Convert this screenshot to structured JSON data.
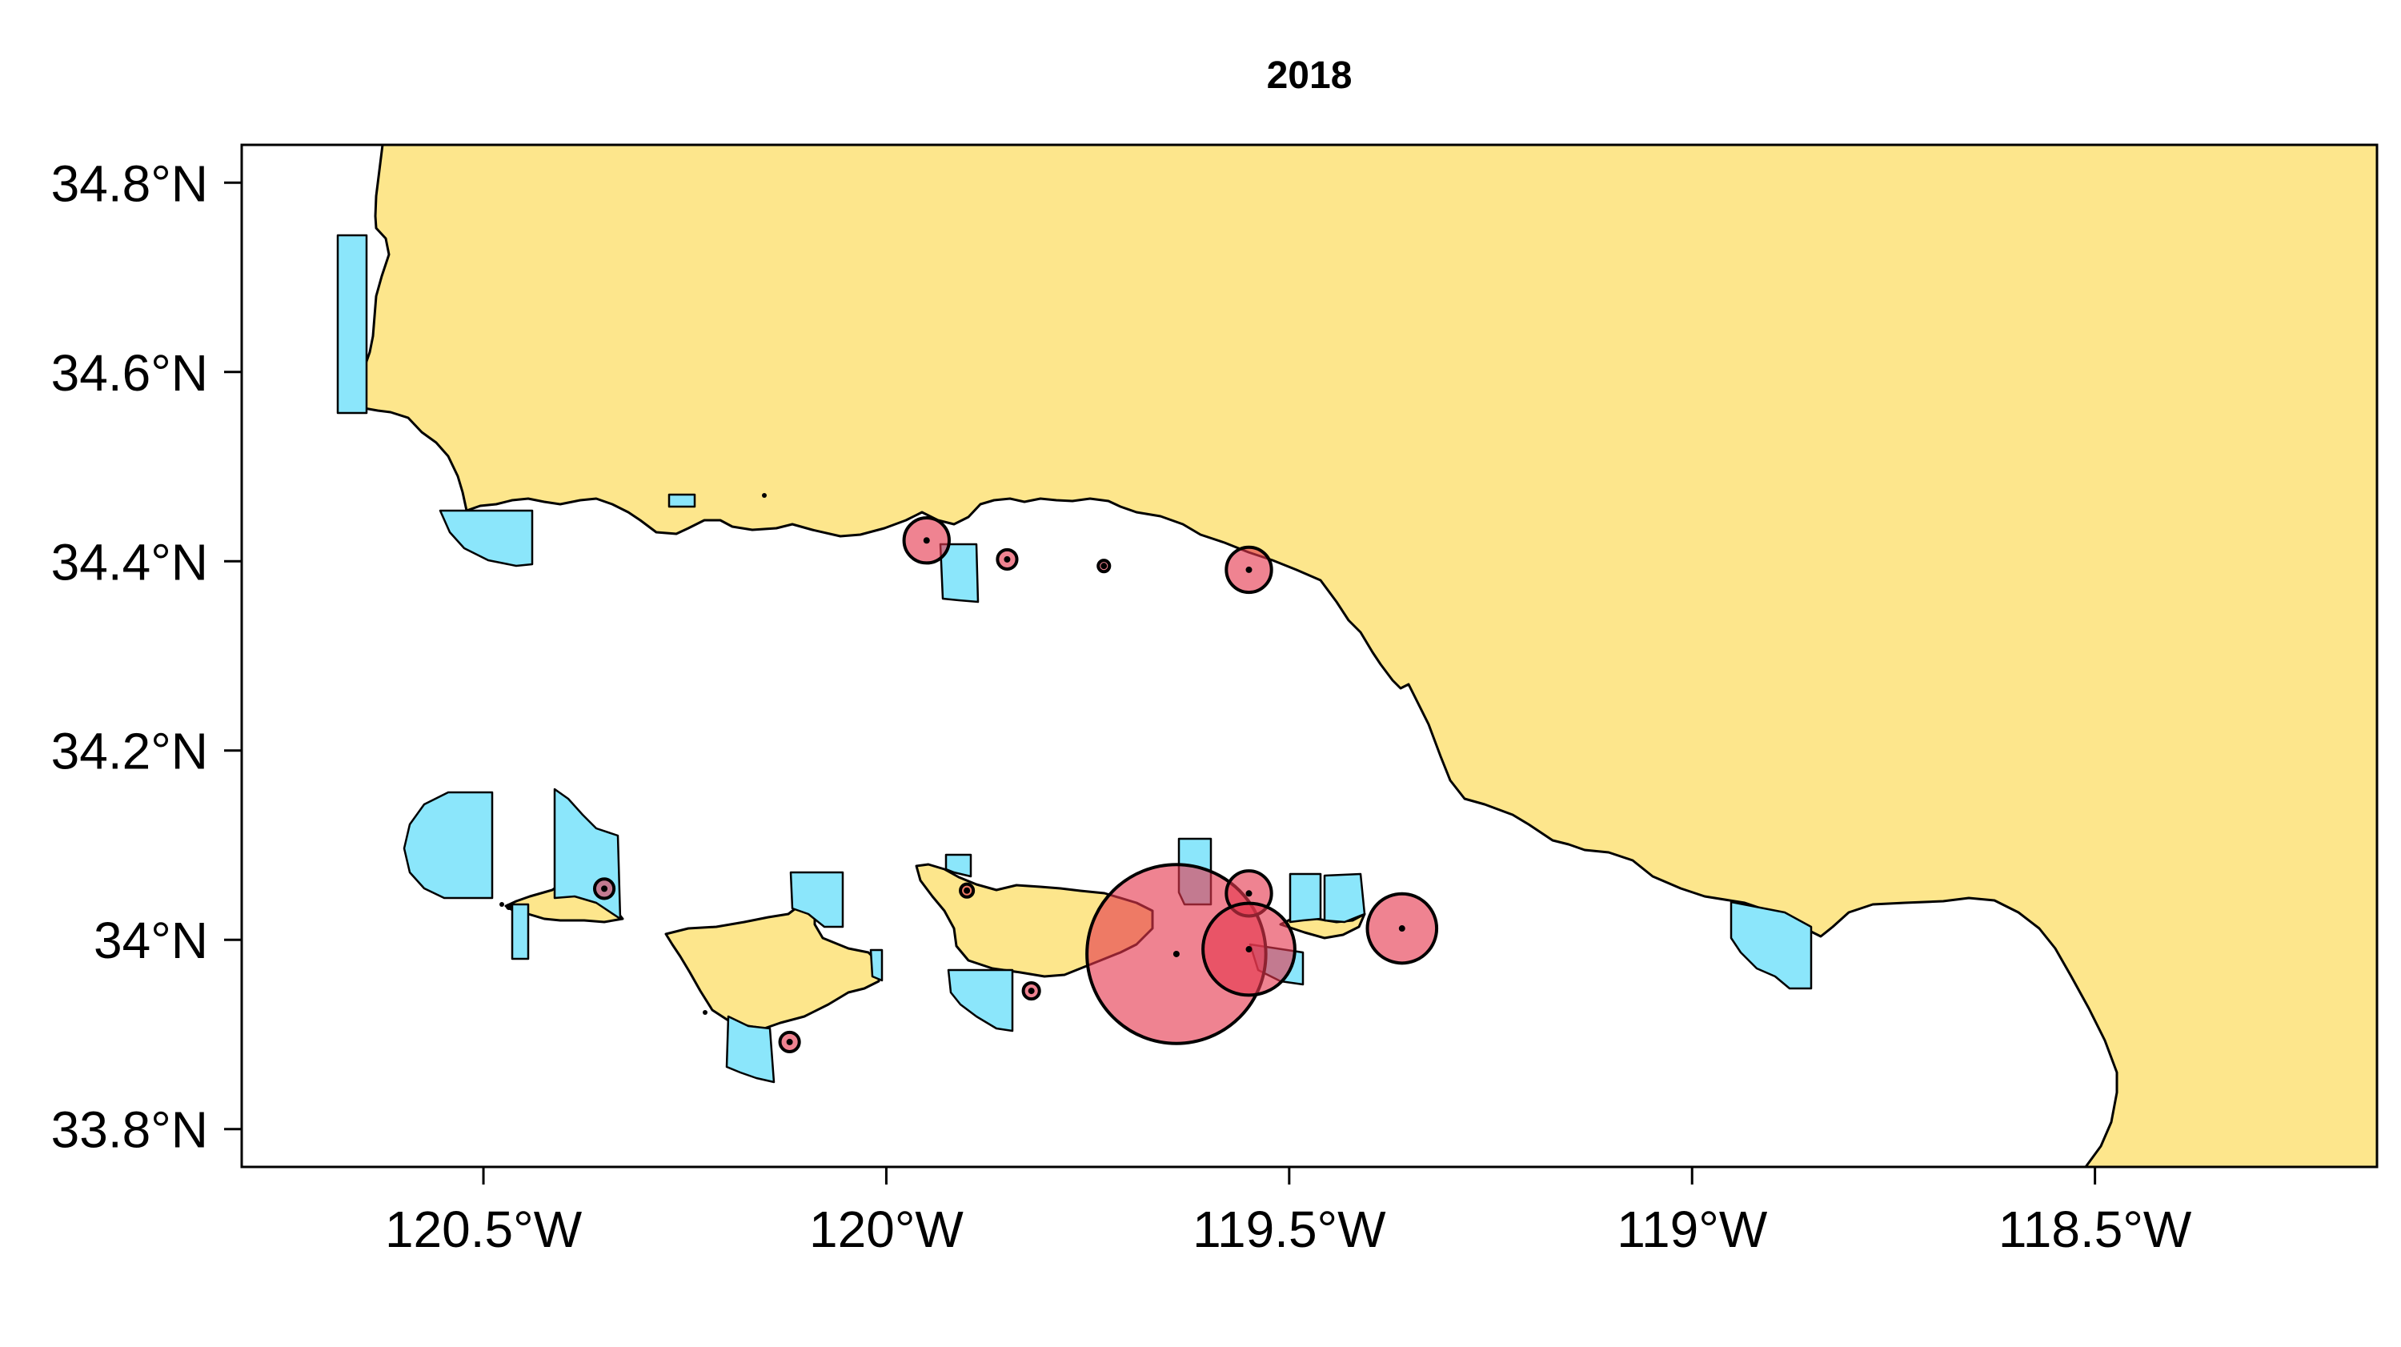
{
  "title": "2018",
  "map": {
    "x_range": [
      -120.8,
      -118.15
    ],
    "y_range": [
      33.76,
      34.84
    ],
    "x_ticks": [
      {
        "value": -120.5,
        "label": "120.5°W"
      },
      {
        "value": -120.0,
        "label": "120°W"
      },
      {
        "value": -119.5,
        "label": "119.5°W"
      },
      {
        "value": -119.0,
        "label": "119°W"
      },
      {
        "value": -118.5,
        "label": "118.5°W"
      }
    ],
    "y_ticks": [
      {
        "value": 34.8,
        "label": "34.8°N"
      },
      {
        "value": 34.6,
        "label": "34.6°N"
      },
      {
        "value": 34.4,
        "label": "34.4°N"
      },
      {
        "value": 34.2,
        "label": "34.2°N"
      },
      {
        "value": 34.0,
        "label": "34°N"
      },
      {
        "value": 33.8,
        "label": "33.8°N"
      }
    ],
    "colors": {
      "land": "#FDE68C",
      "protected_area": "#8BE6FB",
      "bubble": "#E5374E",
      "outline": "#000000"
    },
    "bubbles": [
      {
        "lon": -119.95,
        "lat": 34.422,
        "size": 0.028
      },
      {
        "lon": -119.85,
        "lat": 34.402,
        "size": 0.012
      },
      {
        "lon": -119.73,
        "lat": 34.395,
        "size": 0.007
      },
      {
        "lon": -119.55,
        "lat": 34.391,
        "size": 0.028
      },
      {
        "lon": -120.35,
        "lat": 34.054,
        "size": 0.012
      },
      {
        "lon": -119.9,
        "lat": 34.052,
        "size": 0.008
      },
      {
        "lon": -119.82,
        "lat": 33.946,
        "size": 0.01
      },
      {
        "lon": -120.12,
        "lat": 33.892,
        "size": 0.012
      },
      {
        "lon": -119.64,
        "lat": 33.985,
        "size": 0.111
      },
      {
        "lon": -119.55,
        "lat": 34.049,
        "size": 0.028
      },
      {
        "lon": -119.55,
        "lat": 33.99,
        "size": 0.057
      },
      {
        "lon": -119.36,
        "lat": 34.012,
        "size": 0.043
      }
    ]
  }
}
